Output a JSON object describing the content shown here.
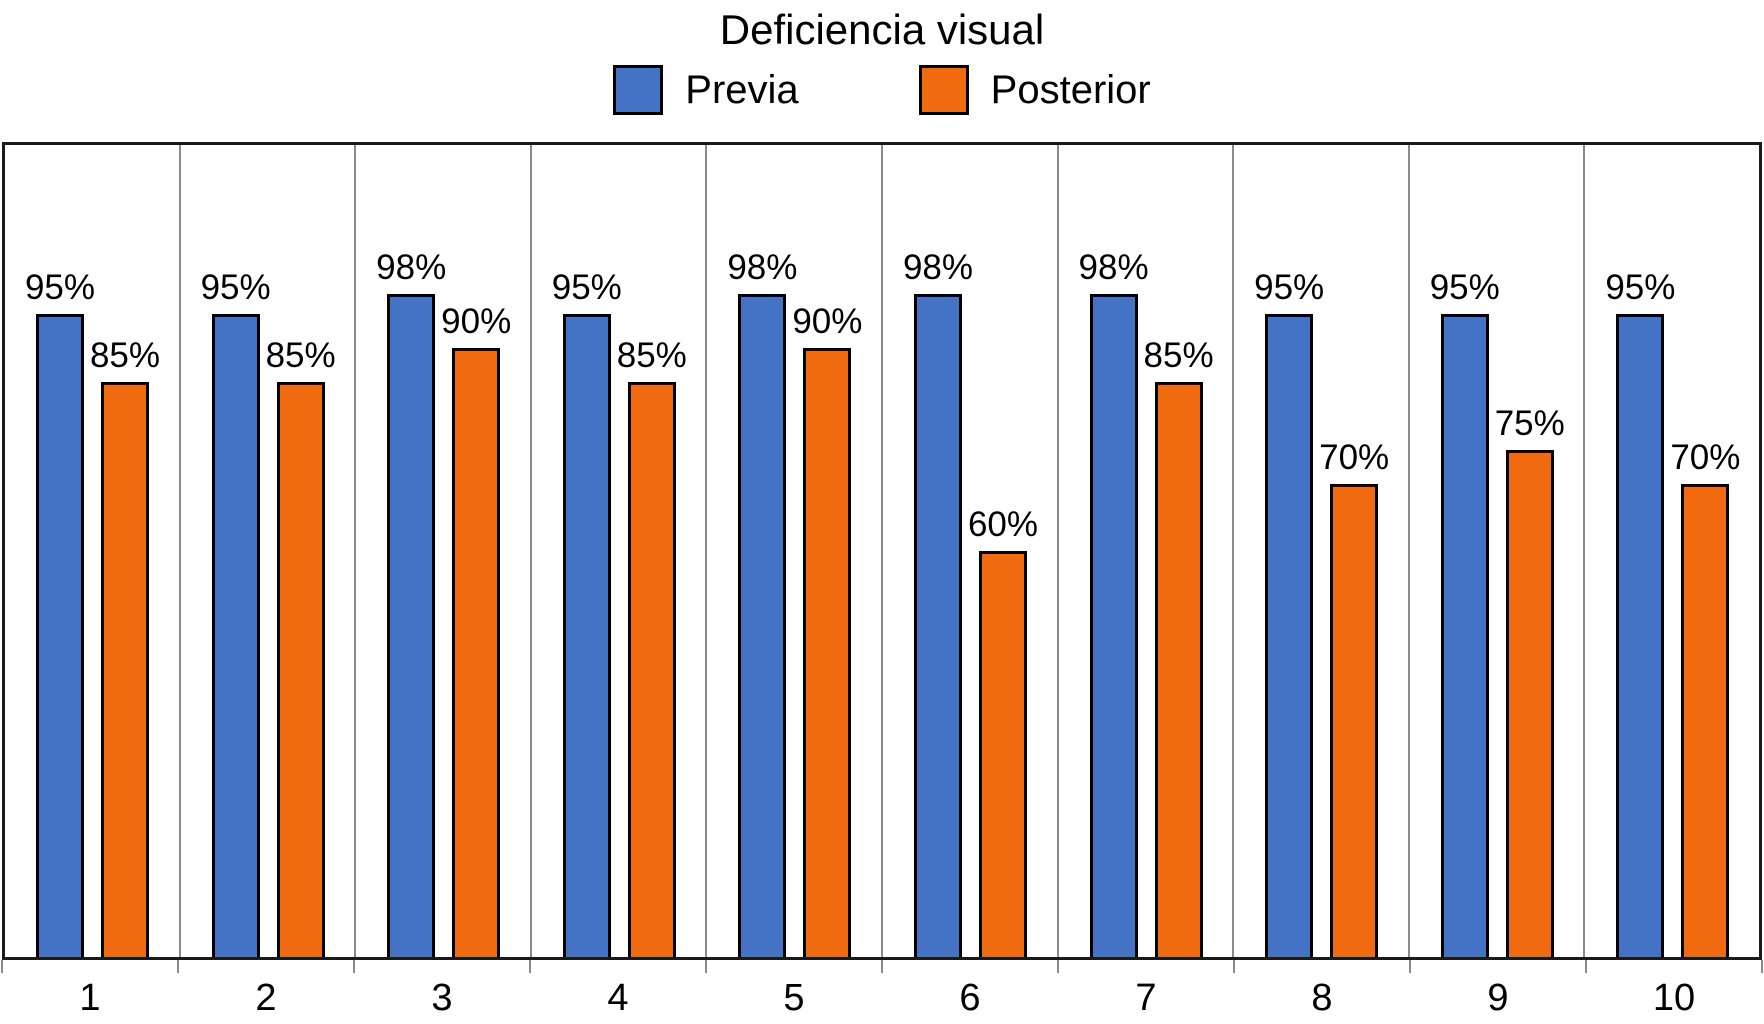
{
  "chart_data": {
    "type": "bar",
    "title": "Deficiencia visual",
    "categories": [
      "1",
      "2",
      "3",
      "4",
      "5",
      "6",
      "7",
      "8",
      "9",
      "10"
    ],
    "series": [
      {
        "name": "Previa",
        "color": "#4472C4",
        "values": [
          95,
          95,
          98,
          95,
          98,
          98,
          98,
          95,
          95,
          95
        ],
        "labels": [
          "95%",
          "95%",
          "98%",
          "95%",
          "98%",
          "98%",
          "98%",
          "95%",
          "95%",
          "95%"
        ]
      },
      {
        "name": "Posterior",
        "color": "#F06A10",
        "values": [
          85,
          85,
          90,
          85,
          90,
          60,
          85,
          70,
          75,
          70
        ],
        "labels": [
          "85%",
          "85%",
          "90%",
          "85%",
          "90%",
          "60%",
          "85%",
          "70%",
          "75%",
          "70%"
        ]
      }
    ],
    "xlabel": "",
    "ylabel": "",
    "ylim": [
      0,
      120
    ],
    "grid": "vertical-category-separators",
    "grid_color": "#8a8a8a",
    "bar_border_color": "#000000",
    "plot_border_color": "#1a1a1a",
    "legend_position": "top",
    "value_label_suffix": "%"
  }
}
